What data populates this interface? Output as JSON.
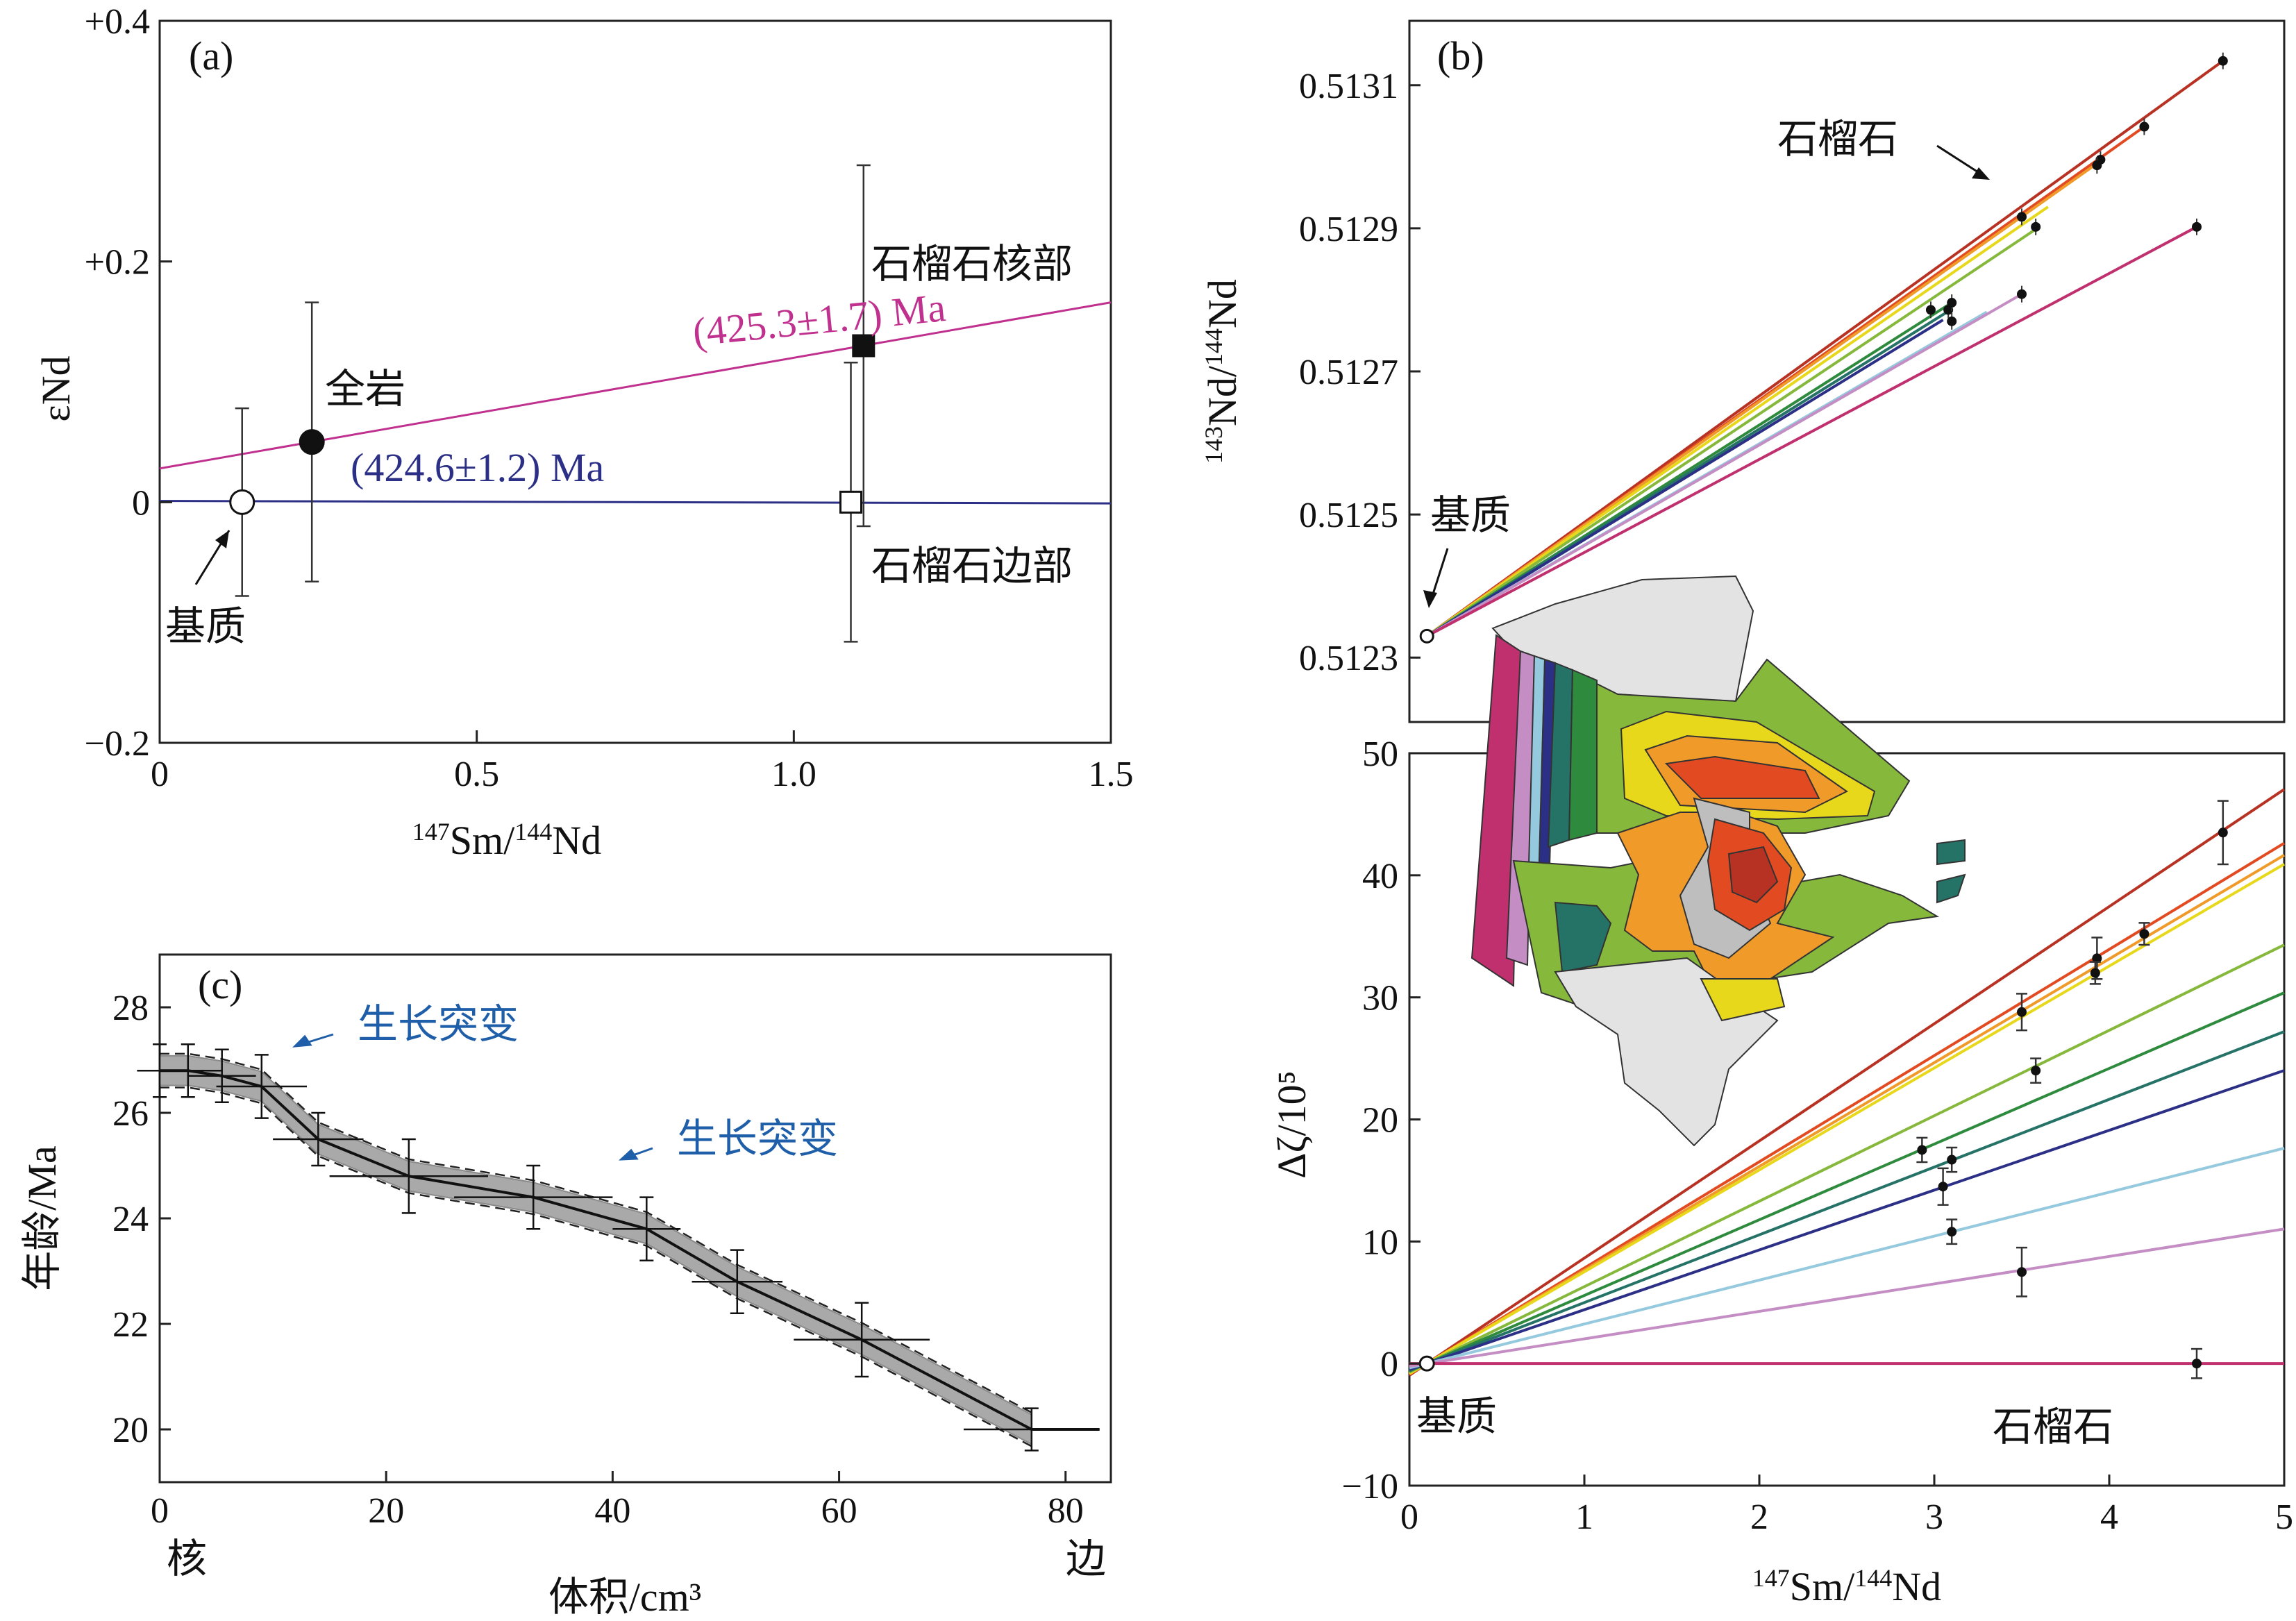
{
  "colors": {
    "magenta": "#c0308e",
    "navy": "#2b2f86",
    "blue_text": "#1f5ea8"
  },
  "chart_data": [
    {
      "id": "a",
      "type": "scatter",
      "panel_label": "(a)",
      "xlabel": "147Sm/144Nd",
      "ylabel": "εNd",
      "xlim": [
        0,
        1.5
      ],
      "ylim": [
        -0.2,
        0.4
      ],
      "xticks": [
        0,
        0.5,
        1.0,
        1.5
      ],
      "xtick_labels": [
        "0",
        "0.5",
        "1.0",
        "1.5"
      ],
      "yticks": [
        -0.2,
        0,
        0.2,
        0.4
      ],
      "ytick_labels": [
        "−0.2",
        "0",
        "+0.2",
        "+0.4"
      ],
      "points": [
        {
          "label": "基质",
          "x": 0.13,
          "y": 0.0,
          "err": 0.078,
          "filled": false,
          "shape": "circle"
        },
        {
          "label": "全岩",
          "x": 0.24,
          "y": 0.05,
          "err": 0.116,
          "filled": true,
          "shape": "circle"
        },
        {
          "label": "石榴石核部",
          "x": 1.11,
          "y": 0.13,
          "err": 0.15,
          "filled": true,
          "shape": "square"
        },
        {
          "label": "石榴石边部",
          "x": 1.09,
          "y": 0.0,
          "err": 0.116,
          "filled": false,
          "shape": "square"
        }
      ],
      "lines": [
        {
          "label": "(425.3±1.7) Ma",
          "color": "#c0308e",
          "x": [
            0,
            1.5
          ],
          "y": [
            0.028,
            0.166
          ]
        },
        {
          "label": "(424.6±1.2) Ma",
          "color": "#2b2f86",
          "x": [
            0,
            1.5
          ],
          "y": [
            0.001,
            -0.001
          ]
        }
      ]
    },
    {
      "id": "b",
      "type": "scatter",
      "panel_label": "(b)",
      "xlabel": "147Sm/144Nd",
      "ylabel": "143Nd/144Nd",
      "xlim": [
        0,
        5
      ],
      "ylim": [
        0.51221,
        0.51319
      ],
      "yticks": [
        0.5123,
        0.5125,
        0.5127,
        0.5129,
        0.5131
      ],
      "ytick_labels": [
        "0.5123",
        "0.5125",
        "0.5127",
        "0.5129",
        "0.5131"
      ],
      "annotations": [
        "石榴石",
        "基质"
      ],
      "origin": {
        "x": 0.1,
        "y": 0.51233
      },
      "series": [
        {
          "color": "#b83223",
          "end": [
            4.65,
            0.513134
          ]
        },
        {
          "color": "#e24b22",
          "end": [
            4.2,
            0.513042
          ]
        },
        {
          "color": "#f09a2a",
          "end": [
            3.95,
            0.512994
          ]
        },
        {
          "color": "#e8d81c",
          "end": [
            3.65,
            0.51293
          ]
        },
        {
          "color": "#86b83c",
          "end": [
            3.6,
            0.512902
          ]
        },
        {
          "color": "#2e8a3c",
          "end": [
            3.1,
            0.512796
          ]
        },
        {
          "color": "#257267",
          "end": [
            3.08,
            0.512784
          ]
        },
        {
          "color": "#2b2f86",
          "end": [
            3.05,
            0.512772
          ]
        },
        {
          "color": "#95c9de",
          "end": [
            3.3,
            0.512783
          ]
        },
        {
          "color": "#c48ec4",
          "end": [
            3.5,
            0.512808
          ]
        },
        {
          "color": "#c0306e",
          "end": [
            4.5,
            0.512902
          ]
        }
      ],
      "points": [
        [
          4.65,
          0.513134
        ],
        [
          4.2,
          0.513042
        ],
        [
          3.95,
          0.512996
        ],
        [
          3.93,
          0.512988
        ],
        [
          3.5,
          0.512916
        ],
        [
          3.58,
          0.512902
        ],
        [
          3.5,
          0.512808
        ],
        [
          2.98,
          0.512786
        ],
        [
          3.08,
          0.512786
        ],
        [
          3.1,
          0.512796
        ],
        [
          3.1,
          0.51277
        ],
        [
          4.5,
          0.512902
        ]
      ],
      "matrix_point": [
        0.1,
        0.51233
      ]
    },
    {
      "id": "c",
      "type": "line",
      "panel_label": "(c)",
      "xlabel": "体积/cm³",
      "ylabel": "年龄/Ma",
      "xlim": [
        0,
        84
      ],
      "ylim": [
        19,
        29
      ],
      "xticks": [
        0,
        20,
        40,
        60,
        80
      ],
      "yticks": [
        20,
        22,
        24,
        26,
        28
      ],
      "x_end_labels": [
        "核",
        "边"
      ],
      "annotations": [
        "生长突变",
        "生长突变"
      ],
      "x": [
        0,
        2.5,
        5.5,
        9,
        14,
        22,
        33,
        43,
        51,
        62,
        77,
        83
      ],
      "y": [
        26.8,
        26.8,
        26.7,
        26.5,
        25.5,
        24.8,
        24.4,
        23.8,
        22.8,
        21.7,
        20.0,
        20.0
      ],
      "xerr": [
        2,
        3,
        3,
        4,
        4,
        7,
        7,
        3,
        4,
        6,
        6,
        0
      ],
      "yerr": [
        0.5,
        0.5,
        0.5,
        0.6,
        0.5,
        0.7,
        0.6,
        0.6,
        0.6,
        0.7,
        0.4,
        0
      ]
    },
    {
      "id": "d",
      "type": "scatter",
      "xlabel": "147Sm/144Nd",
      "ylabel": "Δζ/10⁵",
      "xlim": [
        0,
        5
      ],
      "ylim": [
        -10,
        50
      ],
      "xticks": [
        0,
        1,
        2,
        3,
        4,
        5
      ],
      "yticks": [
        -10,
        0,
        10,
        20,
        30,
        40,
        50
      ],
      "annotations": [
        "基质",
        "石榴石"
      ],
      "origin": {
        "x": 0.1,
        "y": 0
      },
      "series": [
        {
          "color": "#b83223",
          "slope": 9.6
        },
        {
          "color": "#e24b22",
          "slope": 8.7
        },
        {
          "color": "#f09a2a",
          "slope": 8.5
        },
        {
          "color": "#e8d81c",
          "slope": 8.35
        },
        {
          "color": "#86b83c",
          "slope": 7.0
        },
        {
          "color": "#2e8a3c",
          "slope": 6.2
        },
        {
          "color": "#257267",
          "slope": 5.55
        },
        {
          "color": "#2b2f86",
          "slope": 4.9
        },
        {
          "color": "#95c9de",
          "slope": 3.6
        },
        {
          "color": "#c48ec4",
          "slope": 2.25
        },
        {
          "color": "#c0306e",
          "slope": 0.0
        }
      ],
      "points": [
        [
          4.65,
          43.5,
          2.6
        ],
        [
          4.2,
          35.2,
          0.9
        ],
        [
          3.93,
          33.2,
          1.7
        ],
        [
          3.92,
          32.0,
          0.9
        ],
        [
          3.5,
          28.8,
          1.5
        ],
        [
          3.58,
          24.0,
          1.0
        ],
        [
          2.93,
          17.5,
          1.0
        ],
        [
          3.1,
          16.7,
          1.0
        ],
        [
          3.05,
          14.5,
          1.5
        ],
        [
          3.1,
          10.8,
          1.0
        ],
        [
          3.5,
          7.5,
          2.0
        ],
        [
          4.5,
          0,
          1.2
        ]
      ]
    }
  ],
  "map_colors": {
    "c1": "#e3e3e3",
    "c2": "#bebebe",
    "c3": "#c0306e",
    "c4": "#c48ec4",
    "c5": "#95c9de",
    "c6": "#2b2f86",
    "c7": "#257267",
    "c8": "#2e8a3c",
    "c9": "#86b83c",
    "c10": "#e8d81c",
    "c11": "#f09a2a",
    "c12": "#e24b22",
    "c13": "#b83223"
  }
}
